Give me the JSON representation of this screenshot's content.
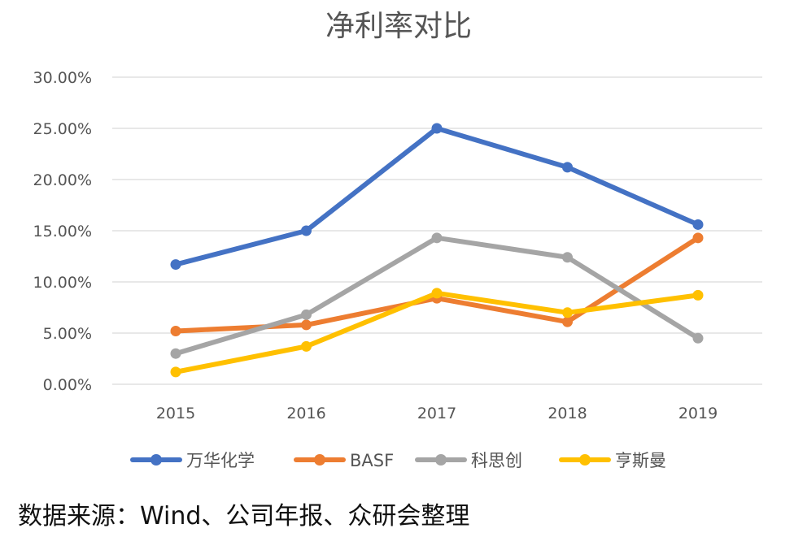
{
  "chart_data": {
    "type": "line",
    "title": "净利率对比",
    "categories": [
      "2015",
      "2016",
      "2017",
      "2018",
      "2019"
    ],
    "ylim": [
      0,
      0.3
    ],
    "yticks": [
      0,
      0.05,
      0.1,
      0.15,
      0.2,
      0.25,
      0.3
    ],
    "ytick_labels": [
      "0.00%",
      "5.00%",
      "10.00%",
      "15.00%",
      "20.00%",
      "25.00%",
      "30.00%"
    ],
    "grid": true,
    "legend_position": "bottom",
    "series": [
      {
        "name": "万华化学",
        "color": "#4472c4",
        "values": [
          0.117,
          0.15,
          0.25,
          0.212,
          0.156
        ]
      },
      {
        "name": "BASF",
        "color": "#ed7d31",
        "values": [
          0.052,
          0.058,
          0.084,
          0.061,
          0.143
        ]
      },
      {
        "name": "科思创",
        "color": "#a5a5a5",
        "values": [
          0.03,
          0.068,
          0.143,
          0.124,
          0.045
        ]
      },
      {
        "name": "亨斯曼",
        "color": "#ffc000",
        "values": [
          0.012,
          0.037,
          0.089,
          0.07,
          0.087
        ]
      }
    ]
  },
  "source_note": "数据来源：Wind、公司年报、众研会整理"
}
